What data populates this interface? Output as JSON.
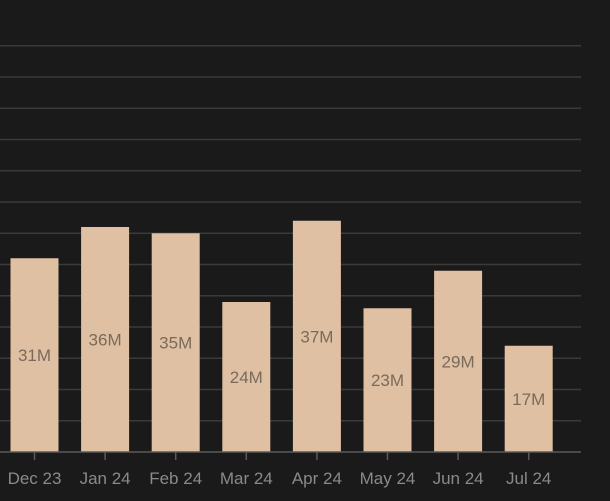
{
  "chart_data": {
    "type": "bar",
    "categories": [
      "Dec 23",
      "Jan 24",
      "Feb 24",
      "Mar 24",
      "Apr 24",
      "May 24",
      "Jun 24",
      "Jul 24"
    ],
    "values": [
      31,
      36,
      35,
      24,
      37,
      23,
      29,
      17
    ],
    "data_labels": [
      "31M",
      "36M",
      "35M",
      "24M",
      "37M",
      "23M",
      "29M",
      "17M"
    ],
    "ylim": [
      0,
      65
    ],
    "gridline_step": 5,
    "grid": true,
    "colors": {
      "background": "#1a1a1a",
      "bar": "#dfc0a2",
      "grid": "#3a3a3a",
      "axis": "#5a5a5a",
      "data_label": "#7a6a5c",
      "tick_label": "#8a8a8a"
    }
  }
}
